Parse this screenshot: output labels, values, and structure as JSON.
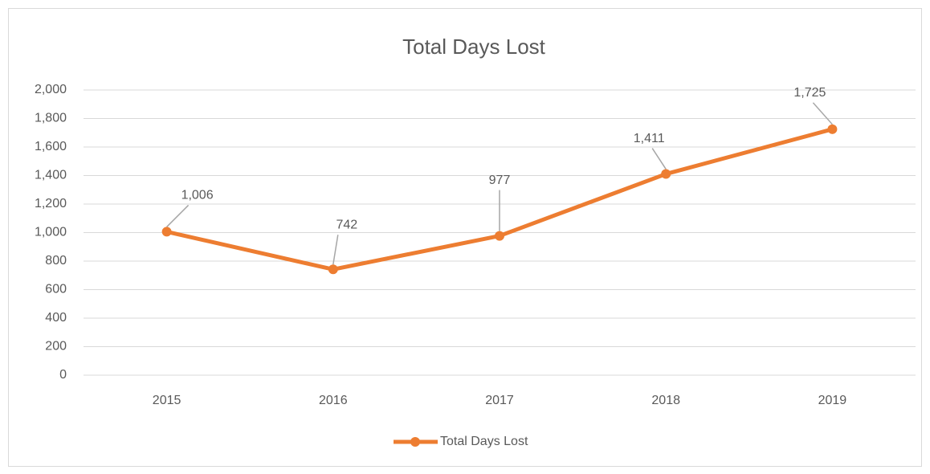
{
  "chart_data": {
    "type": "line",
    "title": "Total Days Lost",
    "categories": [
      "2015",
      "2016",
      "2017",
      "2018",
      "2019"
    ],
    "series": [
      {
        "name": "Total Days Lost",
        "color": "#ed7d31",
        "values": [
          1006,
          742,
          977,
          1411,
          1725
        ],
        "value_labels": [
          "1,006",
          "742",
          "977",
          "1,411",
          "1,725"
        ]
      }
    ],
    "ylim": [
      0,
      2000
    ],
    "yticks": [
      0,
      200,
      400,
      600,
      800,
      {
        "value": 1000,
        "label": "1,000"
      },
      {
        "value": 1200,
        "label": "1,200"
      },
      {
        "value": 1400,
        "label": "1,400"
      },
      {
        "value": 1600,
        "label": "1,600"
      },
      {
        "value": 1800,
        "label": "1,800"
      },
      {
        "value": 2000,
        "label": "2,000"
      }
    ],
    "grid": true,
    "legend": "bottom"
  }
}
